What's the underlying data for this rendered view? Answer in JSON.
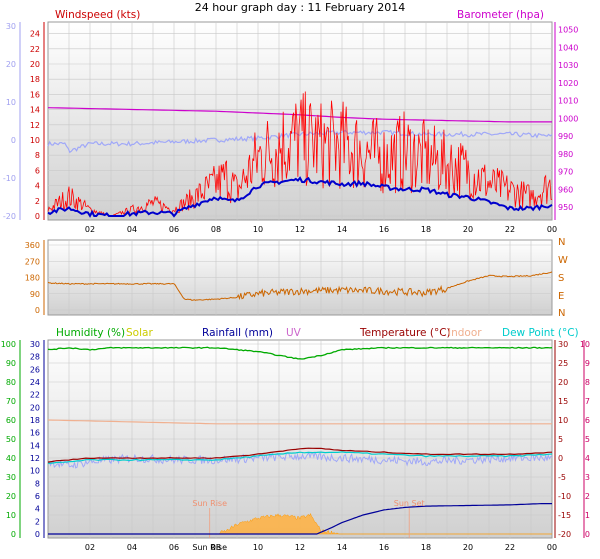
{
  "title": "24 hour graph day : 11 February 2014",
  "colors": {
    "wind_label": "#cc0000",
    "wind_avg": "#0000cc",
    "baro": "#cc00cc",
    "temp_left_axis": "#a0a0f0",
    "wind_dir": "#cc6600",
    "dir_letters": "#cc6600",
    "humidity": "#00aa00",
    "solar": "#cccc00",
    "rainfall": "#000099",
    "uv": "#cc66cc",
    "temperature": "#990000",
    "indoor": "#f0b090",
    "dewpoint": "#00cccc",
    "right_pink": "#cc0066",
    "grid": "#c8c8c8"
  },
  "chart_data": [
    {
      "type": "line",
      "title": "24 hour graph day : 11 February 2014",
      "x_ticks": [
        "02",
        "04",
        "06",
        "08",
        "10",
        "12",
        "14",
        "16",
        "18",
        "20",
        "22",
        "00"
      ],
      "x_range_hours": [
        0,
        24
      ],
      "left_axis_outer": {
        "ticks": [
          "30",
          "20",
          "10",
          "0",
          "-10",
          "-20"
        ],
        "range": [
          -20,
          30
        ]
      },
      "left_axis_inner": {
        "label": "Windspeed (kts)",
        "ticks": [
          "24",
          "22",
          "20",
          "18",
          "16",
          "14",
          "12",
          "10",
          "8",
          "6",
          "4",
          "2",
          "0"
        ],
        "range": [
          0,
          25
        ]
      },
      "right_axis": {
        "label": "Barometer (hpa)",
        "ticks": [
          "1050",
          "1040",
          "1030",
          "1020",
          "1010",
          "1000",
          "990",
          "980",
          "970",
          "960",
          "950"
        ],
        "range": [
          945,
          1052
        ]
      },
      "series": [
        {
          "name": "Windspeed (kts)",
          "kind": "gust",
          "x": [
            0,
            1,
            2,
            3,
            4,
            5,
            6,
            7,
            8,
            8.5,
            9,
            10,
            11,
            12,
            13,
            14,
            15,
            16,
            17,
            18,
            19,
            20,
            21,
            22,
            23,
            24
          ],
          "y": [
            1,
            3,
            1,
            0,
            1,
            2,
            1,
            3,
            5,
            6,
            4,
            9,
            11,
            12,
            11,
            11,
            10,
            9,
            10,
            9,
            8,
            7,
            5,
            4,
            3,
            5
          ]
        },
        {
          "name": "Average wind",
          "kind": "average",
          "x": [
            0,
            1,
            2,
            3,
            4,
            5,
            6,
            7,
            8,
            8.5,
            9,
            10,
            11,
            12,
            13,
            14,
            15,
            16,
            17,
            18,
            19,
            20,
            21,
            22,
            23,
            24
          ],
          "y": [
            0.5,
            1,
            0.3,
            0,
            0.3,
            0.5,
            0.3,
            1.5,
            2.5,
            2,
            2,
            4,
            4.5,
            4.8,
            4.5,
            4.2,
            4.3,
            3.8,
            3.5,
            3.5,
            2.8,
            2.5,
            1.8,
            1,
            1,
            1.5
          ]
        },
        {
          "name": "Barometer (hpa)",
          "x": [
            0,
            2,
            4,
            6,
            8,
            10,
            12,
            14,
            16,
            18,
            20,
            22,
            24
          ],
          "y": [
            1006,
            1005.5,
            1005,
            1004.5,
            1004,
            1003,
            1002,
            1000.5,
            999.5,
            999,
            998.5,
            998,
            998
          ]
        },
        {
          "name": "Outdoor temperature",
          "x": [
            0,
            0.8,
            1,
            2,
            4,
            6,
            8,
            10,
            12,
            14,
            16,
            18,
            20,
            22,
            24
          ],
          "y": [
            -1,
            -1,
            -3,
            -1,
            -1,
            -0.5,
            0,
            0.5,
            1.5,
            2,
            2,
            1.5,
            1.5,
            1.5,
            1
          ]
        }
      ]
    },
    {
      "type": "scatter",
      "y_axis": {
        "ticks": [
          "360",
          "270",
          "180",
          "90",
          "0"
        ],
        "range": [
          0,
          360
        ]
      },
      "direction_labels": [
        "N",
        "W",
        "S",
        "E",
        "N"
      ],
      "series": [
        {
          "name": "Wind direction",
          "x": [
            0,
            1,
            2,
            3,
            4,
            5,
            6,
            6.5,
            7,
            8,
            9,
            10,
            12,
            14,
            16,
            17,
            18,
            19,
            20,
            21,
            22,
            23,
            24
          ],
          "y": [
            150,
            145,
            145,
            145,
            145,
            145,
            145,
            60,
            55,
            60,
            70,
            90,
            105,
            110,
            105,
            100,
            95,
            120,
            160,
            190,
            185,
            190,
            210
          ]
        }
      ]
    },
    {
      "type": "line",
      "legend": [
        "Humidity (%)",
        "Solar",
        "Rainfall (mm)",
        "UV",
        "Temperature (°C)",
        "Indoor",
        "Dew Point (°C)"
      ],
      "x_ticks": [
        "02",
        "04",
        "06",
        "08",
        "10",
        "12",
        "14",
        "16",
        "18",
        "20",
        "22",
        "00"
      ],
      "axes": {
        "humidity": {
          "ticks": [
            "100",
            "90",
            "80",
            "70",
            "60",
            "50",
            "40",
            "30",
            "20",
            "10",
            "0"
          ],
          "range": [
            0,
            100
          ]
        },
        "rain_mm": {
          "ticks": [
            "30",
            "28",
            "26",
            "24",
            "22",
            "20",
            "18",
            "16",
            "14",
            "12",
            "10",
            "8",
            "6",
            "4",
            "2",
            "0"
          ],
          "range": [
            0,
            30
          ]
        },
        "temperature": {
          "ticks": [
            "30",
            "25",
            "20",
            "15",
            "10",
            "5",
            "0",
            "-5",
            "-10",
            "-15",
            "-20"
          ],
          "range": [
            -20,
            30
          ]
        },
        "uv": {
          "ticks": [
            "10",
            "9",
            "8",
            "7",
            "6",
            "5",
            "4",
            "3",
            "2",
            "1",
            "0"
          ],
          "range": [
            0,
            10
          ]
        }
      },
      "annotations": [
        {
          "text": "Sun Rise",
          "x": 7.7
        },
        {
          "text": "Sun Set",
          "x": 17.2
        },
        {
          "text": "Sun Rise",
          "x": 7.7,
          "position": "axis"
        }
      ],
      "series": [
        {
          "name": "Humidity (%)",
          "x": [
            0,
            1,
            2,
            3,
            4,
            6,
            8,
            10,
            11,
            12,
            13,
            14,
            16,
            18,
            20,
            22,
            24
          ],
          "y": [
            97,
            98,
            97,
            98,
            98,
            98,
            98,
            96,
            94,
            92,
            94,
            97,
            98,
            98,
            98,
            98,
            98
          ]
        },
        {
          "name": "Indoor",
          "x": [
            0,
            4,
            8,
            12,
            16,
            20,
            24
          ],
          "y": [
            10,
            9.5,
            9,
            9,
            9,
            9,
            9
          ]
        },
        {
          "name": "Temperature (°C)",
          "x": [
            0,
            2,
            4,
            6,
            8,
            10,
            12,
            13,
            14,
            16,
            18,
            20,
            22,
            24
          ],
          "y": [
            -1,
            0,
            0,
            0,
            0,
            1,
            2.5,
            2.5,
            2,
            1.5,
            1,
            1,
            1,
            1.5
          ]
        },
        {
          "name": "Dew Point (°C)",
          "x": [
            0,
            2,
            4,
            6,
            8,
            10,
            12,
            14,
            16,
            18,
            20,
            22,
            24
          ],
          "y": [
            -1.5,
            -0.5,
            -0.5,
            -0.5,
            -0.5,
            0.5,
            1.5,
            1.5,
            1,
            0.5,
            0.5,
            0.5,
            1
          ]
        },
        {
          "name": "Temperature spread",
          "x": [
            0,
            1,
            2,
            4,
            6,
            8,
            10,
            12,
            14,
            16,
            18,
            20,
            22,
            24
          ],
          "y": [
            -1,
            -2,
            -1,
            0,
            -0.5,
            -0.5,
            0,
            0.5,
            0,
            -0.5,
            -1,
            -0.5,
            0,
            0
          ]
        },
        {
          "name": "Rainfall (mm)",
          "x": [
            0,
            12.8,
            13.5,
            14,
            15,
            16,
            17,
            18,
            20,
            22,
            23.5,
            24
          ],
          "y": [
            0,
            0,
            1,
            1.8,
            3,
            3.8,
            4.2,
            4.4,
            4.5,
            4.6,
            4.8,
            4.8
          ]
        },
        {
          "name": "Solar",
          "x": [
            0,
            8,
            8.5,
            9,
            10,
            11,
            12,
            12.5,
            13,
            14,
            24
          ],
          "y": [
            0,
            0,
            0.5,
            1.5,
            2.5,
            3,
            2.5,
            3,
            0.5,
            0,
            0
          ]
        }
      ]
    }
  ]
}
